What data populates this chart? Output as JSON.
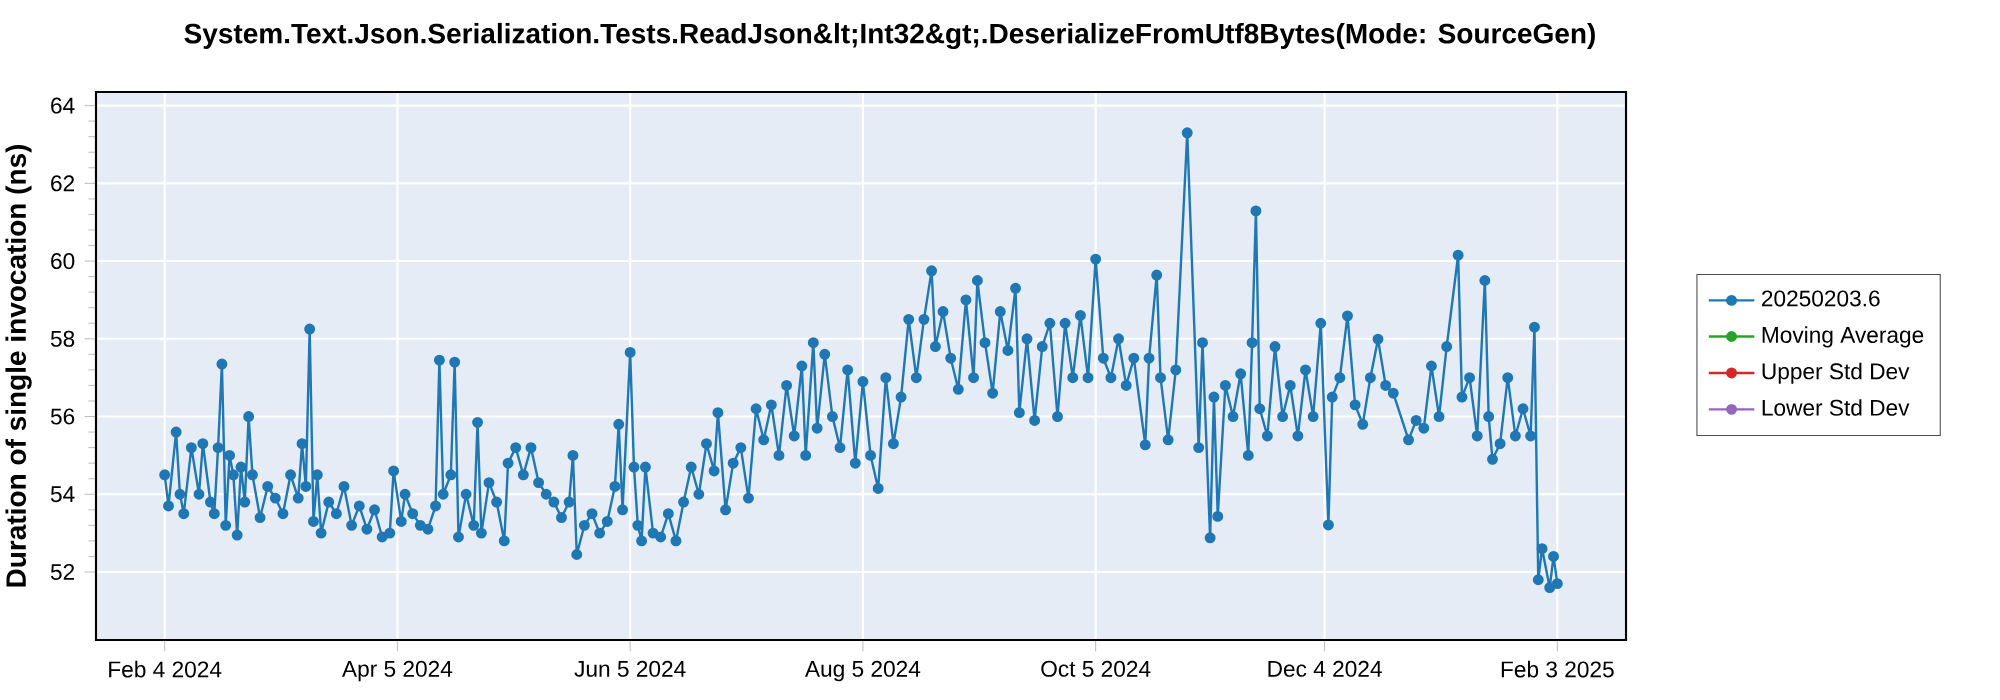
{
  "chart_data": {
    "type": "line",
    "title": "System.Text.Json.Serialization.Tests.ReadJson&lt;Int32&gt;.DeserializeFromUtf8Bytes(Mode: SourceGen)",
    "ylabel": "Duration of single invocation (ns)",
    "xlim": [
      "2024-01-17",
      "2025-02-21"
    ],
    "xticks": [
      {
        "value": "2024-02-04",
        "label": "Feb 4 2024"
      },
      {
        "value": "2024-04-05",
        "label": "Apr 5 2024"
      },
      {
        "value": "2024-06-05",
        "label": "Jun 5 2024"
      },
      {
        "value": "2024-08-05",
        "label": "Aug 5 2024"
      },
      {
        "value": "2024-10-05",
        "label": "Oct 5 2024"
      },
      {
        "value": "2024-12-04",
        "label": "Dec 4 2024"
      },
      {
        "value": "2025-02-03",
        "label": "Feb 3 2025"
      }
    ],
    "ylim": [
      50.25,
      64.35
    ],
    "yticks": [
      52,
      54,
      56,
      58,
      60,
      62,
      64
    ],
    "grid": true,
    "legend": "right",
    "marker": "circle",
    "series": [
      {
        "name": "20250203.6",
        "color": "#1f77b4",
        "x": [
          "2024-02-04",
          "2024-02-05",
          "2024-02-07",
          "2024-02-08",
          "2024-02-09",
          "2024-02-11",
          "2024-02-13",
          "2024-02-14",
          "2024-02-16",
          "2024-02-17",
          "2024-02-18",
          "2024-02-19",
          "2024-02-20",
          "2024-02-21",
          "2024-02-22",
          "2024-02-23",
          "2024-02-24",
          "2024-02-25",
          "2024-02-26",
          "2024-02-27",
          "2024-02-29",
          "2024-03-02",
          "2024-03-04",
          "2024-03-06",
          "2024-03-08",
          "2024-03-10",
          "2024-03-11",
          "2024-03-12",
          "2024-03-13",
          "2024-03-14",
          "2024-03-15",
          "2024-03-16",
          "2024-03-18",
          "2024-03-20",
          "2024-03-22",
          "2024-03-24",
          "2024-03-26",
          "2024-03-28",
          "2024-03-30",
          "2024-04-01",
          "2024-04-03",
          "2024-04-04",
          "2024-04-06",
          "2024-04-07",
          "2024-04-09",
          "2024-04-11",
          "2024-04-13",
          "2024-04-15",
          "2024-04-16",
          "2024-04-17",
          "2024-04-19",
          "2024-04-20",
          "2024-04-21",
          "2024-04-23",
          "2024-04-25",
          "2024-04-26",
          "2024-04-27",
          "2024-04-29",
          "2024-05-01",
          "2024-05-03",
          "2024-05-04",
          "2024-05-06",
          "2024-05-08",
          "2024-05-10",
          "2024-05-12",
          "2024-05-14",
          "2024-05-16",
          "2024-05-18",
          "2024-05-20",
          "2024-05-21",
          "2024-05-22",
          "2024-05-24",
          "2024-05-26",
          "2024-05-28",
          "2024-05-30",
          "2024-06-01",
          "2024-06-02",
          "2024-06-03",
          "2024-06-05",
          "2024-06-06",
          "2024-06-07",
          "2024-06-08",
          "2024-06-09",
          "2024-06-11",
          "2024-06-13",
          "2024-06-15",
          "2024-06-17",
          "2024-06-19",
          "2024-06-21",
          "2024-06-23",
          "2024-06-25",
          "2024-06-27",
          "2024-06-28",
          "2024-06-30",
          "2024-07-02",
          "2024-07-04",
          "2024-07-06",
          "2024-07-08",
          "2024-07-10",
          "2024-07-12",
          "2024-07-14",
          "2024-07-16",
          "2024-07-18",
          "2024-07-20",
          "2024-07-21",
          "2024-07-23",
          "2024-07-24",
          "2024-07-26",
          "2024-07-28",
          "2024-07-30",
          "2024-08-01",
          "2024-08-03",
          "2024-08-05",
          "2024-08-07",
          "2024-08-09",
          "2024-08-11",
          "2024-08-13",
          "2024-08-15",
          "2024-08-17",
          "2024-08-19",
          "2024-08-21",
          "2024-08-23",
          "2024-08-24",
          "2024-08-26",
          "2024-08-28",
          "2024-08-30",
          "2024-09-01",
          "2024-09-03",
          "2024-09-04",
          "2024-09-06",
          "2024-09-08",
          "2024-09-10",
          "2024-09-12",
          "2024-09-14",
          "2024-09-15",
          "2024-09-17",
          "2024-09-19",
          "2024-09-21",
          "2024-09-23",
          "2024-09-25",
          "2024-09-27",
          "2024-09-29",
          "2024-10-01",
          "2024-10-03",
          "2024-10-05",
          "2024-10-07",
          "2024-10-09",
          "2024-10-11",
          "2024-10-13",
          "2024-10-15",
          "2024-10-18",
          "2024-10-19",
          "2024-10-21",
          "2024-10-22",
          "2024-10-24",
          "2024-10-26",
          "2024-10-29",
          "2024-11-01",
          "2024-11-02",
          "2024-11-04",
          "2024-11-05",
          "2024-11-06",
          "2024-11-08",
          "2024-11-10",
          "2024-11-12",
          "2024-11-14",
          "2024-11-15",
          "2024-11-16",
          "2024-11-17",
          "2024-11-19",
          "2024-11-21",
          "2024-11-23",
          "2024-11-25",
          "2024-11-27",
          "2024-11-29",
          "2024-12-01",
          "2024-12-03",
          "2024-12-05",
          "2024-12-06",
          "2024-12-08",
          "2024-12-10",
          "2024-12-12",
          "2024-12-14",
          "2024-12-16",
          "2024-12-18",
          "2024-12-20",
          "2024-12-22",
          "2024-12-26",
          "2024-12-28",
          "2024-12-30",
          "2025-01-01",
          "2025-01-03",
          "2025-01-05",
          "2025-01-08",
          "2025-01-09",
          "2025-01-11",
          "2025-01-13",
          "2025-01-15",
          "2025-01-16",
          "2025-01-17",
          "2025-01-19",
          "2025-01-21",
          "2025-01-23",
          "2025-01-25",
          "2025-01-27",
          "2025-01-28",
          "2025-01-29",
          "2025-01-30",
          "2025-02-01",
          "2025-02-02",
          "2025-02-03"
        ],
        "values": [
          54.5,
          53.7,
          55.6,
          54.0,
          53.5,
          55.2,
          54.0,
          55.3,
          53.8,
          53.5,
          55.2,
          57.35,
          53.2,
          55.0,
          54.5,
          52.95,
          54.7,
          53.8,
          56.0,
          54.5,
          53.4,
          54.2,
          53.9,
          53.5,
          54.5,
          53.9,
          55.3,
          54.2,
          58.25,
          53.3,
          54.5,
          53.0,
          53.8,
          53.5,
          54.2,
          53.2,
          53.7,
          53.1,
          53.6,
          52.9,
          53.0,
          54.6,
          53.3,
          54.0,
          53.5,
          53.2,
          53.1,
          53.7,
          57.45,
          54.0,
          54.5,
          57.4,
          52.9,
          54.0,
          53.2,
          55.85,
          53.0,
          54.3,
          53.8,
          52.8,
          54.8,
          55.2,
          54.5,
          55.2,
          54.3,
          54.0,
          53.8,
          53.4,
          53.8,
          55.0,
          52.45,
          53.2,
          53.5,
          53.0,
          53.3,
          54.2,
          55.8,
          53.6,
          57.65,
          54.7,
          53.2,
          52.8,
          54.7,
          53.0,
          52.9,
          53.5,
          52.8,
          53.8,
          54.7,
          54.0,
          55.3,
          54.6,
          56.1,
          53.6,
          54.8,
          55.2,
          53.9,
          56.2,
          55.4,
          56.3,
          55.0,
          56.8,
          55.5,
          57.3,
          55.0,
          57.9,
          55.7,
          57.6,
          56.0,
          55.2,
          57.2,
          54.8,
          56.9,
          55.0,
          54.15,
          57.0,
          55.3,
          56.5,
          58.5,
          57.0,
          58.5,
          59.75,
          57.8,
          58.7,
          57.5,
          56.7,
          59.0,
          57.0,
          59.5,
          57.9,
          56.6,
          58.7,
          57.7,
          59.3,
          56.1,
          58.0,
          55.9,
          57.8,
          58.4,
          56.0,
          58.4,
          57.0,
          58.6,
          57.0,
          60.05,
          57.5,
          57.0,
          58.0,
          56.8,
          57.5,
          55.27,
          57.5,
          59.64,
          57.0,
          55.4,
          57.2,
          63.3,
          55.2,
          57.9,
          52.88,
          56.5,
          53.43,
          56.8,
          56.0,
          57.1,
          55.0,
          57.9,
          61.29,
          56.2,
          55.5,
          57.8,
          56.0,
          56.8,
          55.5,
          57.2,
          56.0,
          58.4,
          53.21,
          56.5,
          57.0,
          58.59,
          56.3,
          55.8,
          57.0,
          57.99,
          56.8,
          56.6,
          55.4,
          55.9,
          55.7,
          57.3,
          56.0,
          57.8,
          60.15,
          56.5,
          57.0,
          55.5,
          59.5,
          56.0,
          54.9,
          55.3,
          57.0,
          55.5,
          56.2,
          55.5,
          58.3,
          51.8,
          52.6,
          51.6,
          52.4,
          51.7
        ]
      },
      {
        "name": "Moving Average",
        "color": "#2ca02c"
      },
      {
        "name": "Upper Std Dev",
        "color": "#d62728"
      },
      {
        "name": "Lower Std Dev",
        "color": "#9467bd"
      }
    ]
  }
}
